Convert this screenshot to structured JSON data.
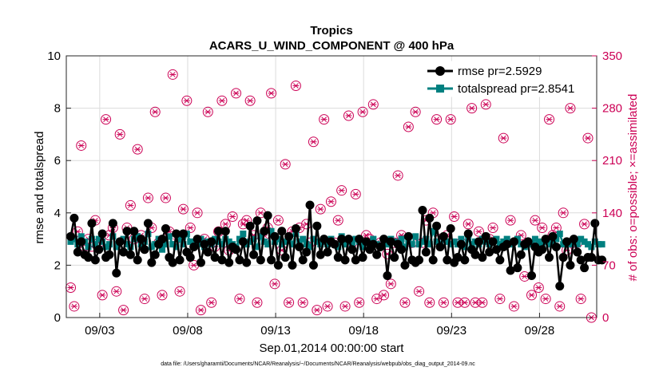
{
  "chart_data": {
    "type": "line",
    "title": "Tropics",
    "subtitle": "ACARS_U_WIND_COMPONENT @ 400 hPa",
    "xlabel": "Sep.01,2014 00:00:00 start",
    "ylabel_left": "rmse and totalspread",
    "ylabel_right": "# of obs: o=possible; ×=assimilated",
    "footnote": "data file: /Users/gharamti/Documents/NCAR/Reanalysis/~/Documents/NCAR/Reanalysis/webpub/obs_diag_output_2014-09.nc",
    "x_unit": "days since Sep.01,2014 00:00:00",
    "xlim": [
      0.6,
      30.75
    ],
    "x_ticks": [
      {
        "value": 2.5,
        "label": "09/03"
      },
      {
        "value": 7.5,
        "label": "09/08"
      },
      {
        "value": 12.5,
        "label": "09/13"
      },
      {
        "value": 17.5,
        "label": "09/18"
      },
      {
        "value": 22.5,
        "label": "09/23"
      },
      {
        "value": 27.5,
        "label": "09/28"
      }
    ],
    "ylim_left": [
      0,
      10
    ],
    "y_ticks_left": [
      "0",
      "2",
      "4",
      "6",
      "8",
      "10"
    ],
    "ylim_right": [
      0,
      350
    ],
    "y_ticks_right": [
      "0",
      "70",
      "140",
      "210",
      "280",
      "350"
    ],
    "grid": true,
    "legend_position": "top-right",
    "colors": {
      "rmse": "#000000",
      "totalspread": "#008080",
      "obs": "#cc0055"
    },
    "series": [
      {
        "name": "rmse pr=2.5929",
        "values": [
          3.1,
          3.8,
          2.5,
          2.9,
          2.4,
          2.3,
          3.6,
          2.2,
          2.6,
          3.2,
          2.3,
          2.4,
          3.6,
          1.7,
          2.9,
          2.5,
          3.3,
          2.4,
          3.3,
          2.2,
          3.0,
          2.6,
          3.6,
          2.1,
          2.4,
          2.8,
          3.0,
          3.4,
          2.3,
          2.1,
          3.2,
          2.2,
          3.2,
          2.5,
          2.3,
          2.7,
          3.0,
          2.1,
          2.8,
          2.5,
          2.9,
          2.3,
          3.3,
          2.2,
          3.3,
          2.1,
          2.7,
          2.6,
          2.2,
          2.9,
          2.1,
          3.5,
          2.4,
          3.7,
          2.2,
          3.3,
          3.9,
          2.2,
          3.1,
          2.0,
          3.3,
          2.3,
          3.1,
          2.0,
          3.4,
          2.7,
          2.2,
          2.5,
          4.3,
          2.0,
          3.5,
          2.4,
          3.0,
          2.5,
          2.9,
          2.8,
          2.3,
          3.0,
          2.2,
          3.0,
          2.6,
          2.2,
          3.0,
          2.3,
          2.9,
          2.6,
          2.8,
          2.4,
          2.7,
          3.0,
          1.6,
          2.9,
          2.3,
          2.8,
          2.6,
          2.0,
          3.1,
          2.2,
          2.1,
          2.2,
          4.1,
          2.5,
          3.8,
          2.2,
          3.5,
          2.7,
          3.1,
          2.2,
          3.4,
          2.1,
          2.3,
          2.8,
          2.2,
          3.2,
          2.6,
          2.4,
          2.9,
          2.3,
          3.1,
          2.5,
          2.9,
          2.6,
          2.2,
          2.7,
          2.8,
          1.8,
          2.9,
          1.9,
          2.4,
          2.8,
          2.9,
          1.6,
          2.7,
          2.5,
          2.6,
          3.0,
          2.3,
          3.1,
          2.7,
          1.2,
          2.3,
          2.9,
          2.0,
          3.0,
          2.5,
          2.2,
          1.9,
          2.3,
          2.3,
          3.6,
          2.2,
          2.2
        ]
      },
      {
        "name": "totalspread pr=2.8541",
        "values": [
          2.9,
          3.0,
          2.8,
          3.1,
          2.9,
          2.7,
          3.0,
          2.8,
          3.0,
          2.9,
          2.7,
          2.8,
          3.1,
          2.7,
          2.9,
          3.0,
          2.8,
          2.7,
          3.0,
          3.1,
          2.8,
          2.9,
          3.2,
          2.7,
          2.8,
          3.0,
          2.6,
          2.8,
          3.1,
          2.8,
          2.7,
          3.0,
          2.8,
          3.2,
          2.9,
          2.8,
          2.8,
          3.0,
          2.7,
          2.9,
          2.8,
          3.0,
          2.9,
          2.8,
          3.0,
          2.9,
          2.8,
          2.7,
          3.0,
          3.2,
          2.8,
          2.9,
          3.0,
          2.7,
          3.1,
          2.9,
          2.8,
          3.3,
          2.9,
          3.0,
          2.8,
          2.9,
          3.0,
          2.8,
          3.2,
          2.9,
          3.0,
          2.8,
          2.7,
          3.0,
          2.9,
          2.8,
          2.9,
          2.8,
          3.0,
          2.8,
          2.7,
          3.1,
          2.8,
          2.9,
          2.8,
          3.0,
          2.9,
          2.7,
          2.9,
          2.8,
          3.0,
          2.8,
          2.7,
          2.9,
          2.8,
          3.0,
          2.9,
          2.8,
          3.0,
          2.7,
          2.9,
          2.8,
          3.1,
          2.8,
          2.9,
          3.0,
          2.8,
          3.3,
          2.9,
          2.8,
          3.0,
          2.9,
          2.8,
          2.9,
          2.8,
          3.0,
          2.7,
          3.0,
          2.8,
          2.9,
          2.8,
          3.0,
          2.9,
          2.8,
          2.9,
          3.0,
          2.8,
          2.9,
          3.0,
          2.8,
          2.9,
          3.0,
          2.8,
          2.7,
          2.9,
          2.8,
          3.0,
          2.9,
          2.8,
          2.9,
          2.8,
          2.9,
          3.0,
          3.2,
          2.8,
          2.9,
          2.8,
          2.9,
          2.8,
          3.0,
          2.9,
          2.8,
          2.7,
          2.9,
          2.8,
          2.8
        ]
      },
      {
        "name": "obs possible / assimilated",
        "axis": "right",
        "values": [
          40,
          15,
          115,
          230,
          90,
          105,
          95,
          130,
          100,
          30,
          265,
          110,
          120,
          35,
          245,
          10,
          120,
          150,
          105,
          225,
          110,
          25,
          160,
          120,
          275,
          100,
          30,
          160,
          115,
          325,
          105,
          35,
          145,
          290,
          120,
          70,
          140,
          10,
          105,
          275,
          20,
          95,
          115,
          290,
          125,
          90,
          135,
          300,
          25,
          125,
          130,
          290,
          110,
          20,
          140,
          110,
          120,
          300,
          45,
          130,
          90,
          205,
          20,
          115,
          310,
          120,
          20,
          125,
          100,
          235,
          10,
          145,
          265,
          15,
          155,
          100,
          130,
          170,
          15,
          270,
          100,
          165,
          20,
          275,
          110,
          105,
          285,
          25,
          100,
          30,
          85,
          45,
          100,
          190,
          110,
          20,
          255,
          100,
          275,
          35,
          100,
          130,
          20,
          140,
          265,
          105,
          20,
          110,
          265,
          135,
          20,
          100,
          20,
          125,
          280,
          20,
          115,
          20,
          285,
          105,
          120,
          305,
          25,
          240,
          100,
          130,
          15,
          315,
          110,
          55,
          315,
          30,
          130,
          40,
          120,
          25,
          265,
          110,
          120,
          15,
          140,
          90,
          280,
          100,
          100,
          25,
          125,
          240,
          0
        ]
      }
    ]
  }
}
